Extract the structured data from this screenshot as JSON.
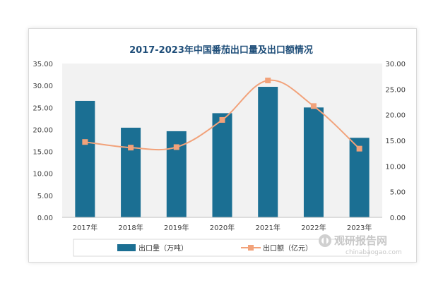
{
  "chart_data": {
    "type": "bar",
    "title": "2017-2023年中国番茄出口量及出口额情况",
    "categories": [
      "2017年",
      "2018年",
      "2019年",
      "2020年",
      "2021年",
      "2022年",
      "2023年"
    ],
    "series": [
      {
        "name": "出口量（万吨）",
        "type": "bar",
        "axis": "left",
        "color": "#1b6f93",
        "values": [
          26.5,
          20.4,
          19.6,
          23.7,
          29.7,
          25.0,
          18.1
        ]
      },
      {
        "name": "出口额（亿元）",
        "type": "line",
        "axis": "right",
        "color": "#f2a27a",
        "values": [
          14.7,
          13.6,
          13.7,
          19.0,
          26.7,
          21.7,
          13.4
        ]
      }
    ],
    "ylim_left": [
      0,
      35
    ],
    "ylim_right": [
      0,
      30
    ],
    "yticks_left": [
      "0.00",
      "5.00",
      "10.00",
      "15.00",
      "20.00",
      "25.00",
      "30.00",
      "35.00"
    ],
    "yticks_right": [
      "0.00",
      "5.00",
      "10.00",
      "15.00",
      "20.00",
      "25.00",
      "30.00"
    ],
    "grid": false,
    "legend_position": "bottom"
  },
  "watermark": {
    "main": "观研报告网",
    "sub": "chinabaogao.com"
  }
}
